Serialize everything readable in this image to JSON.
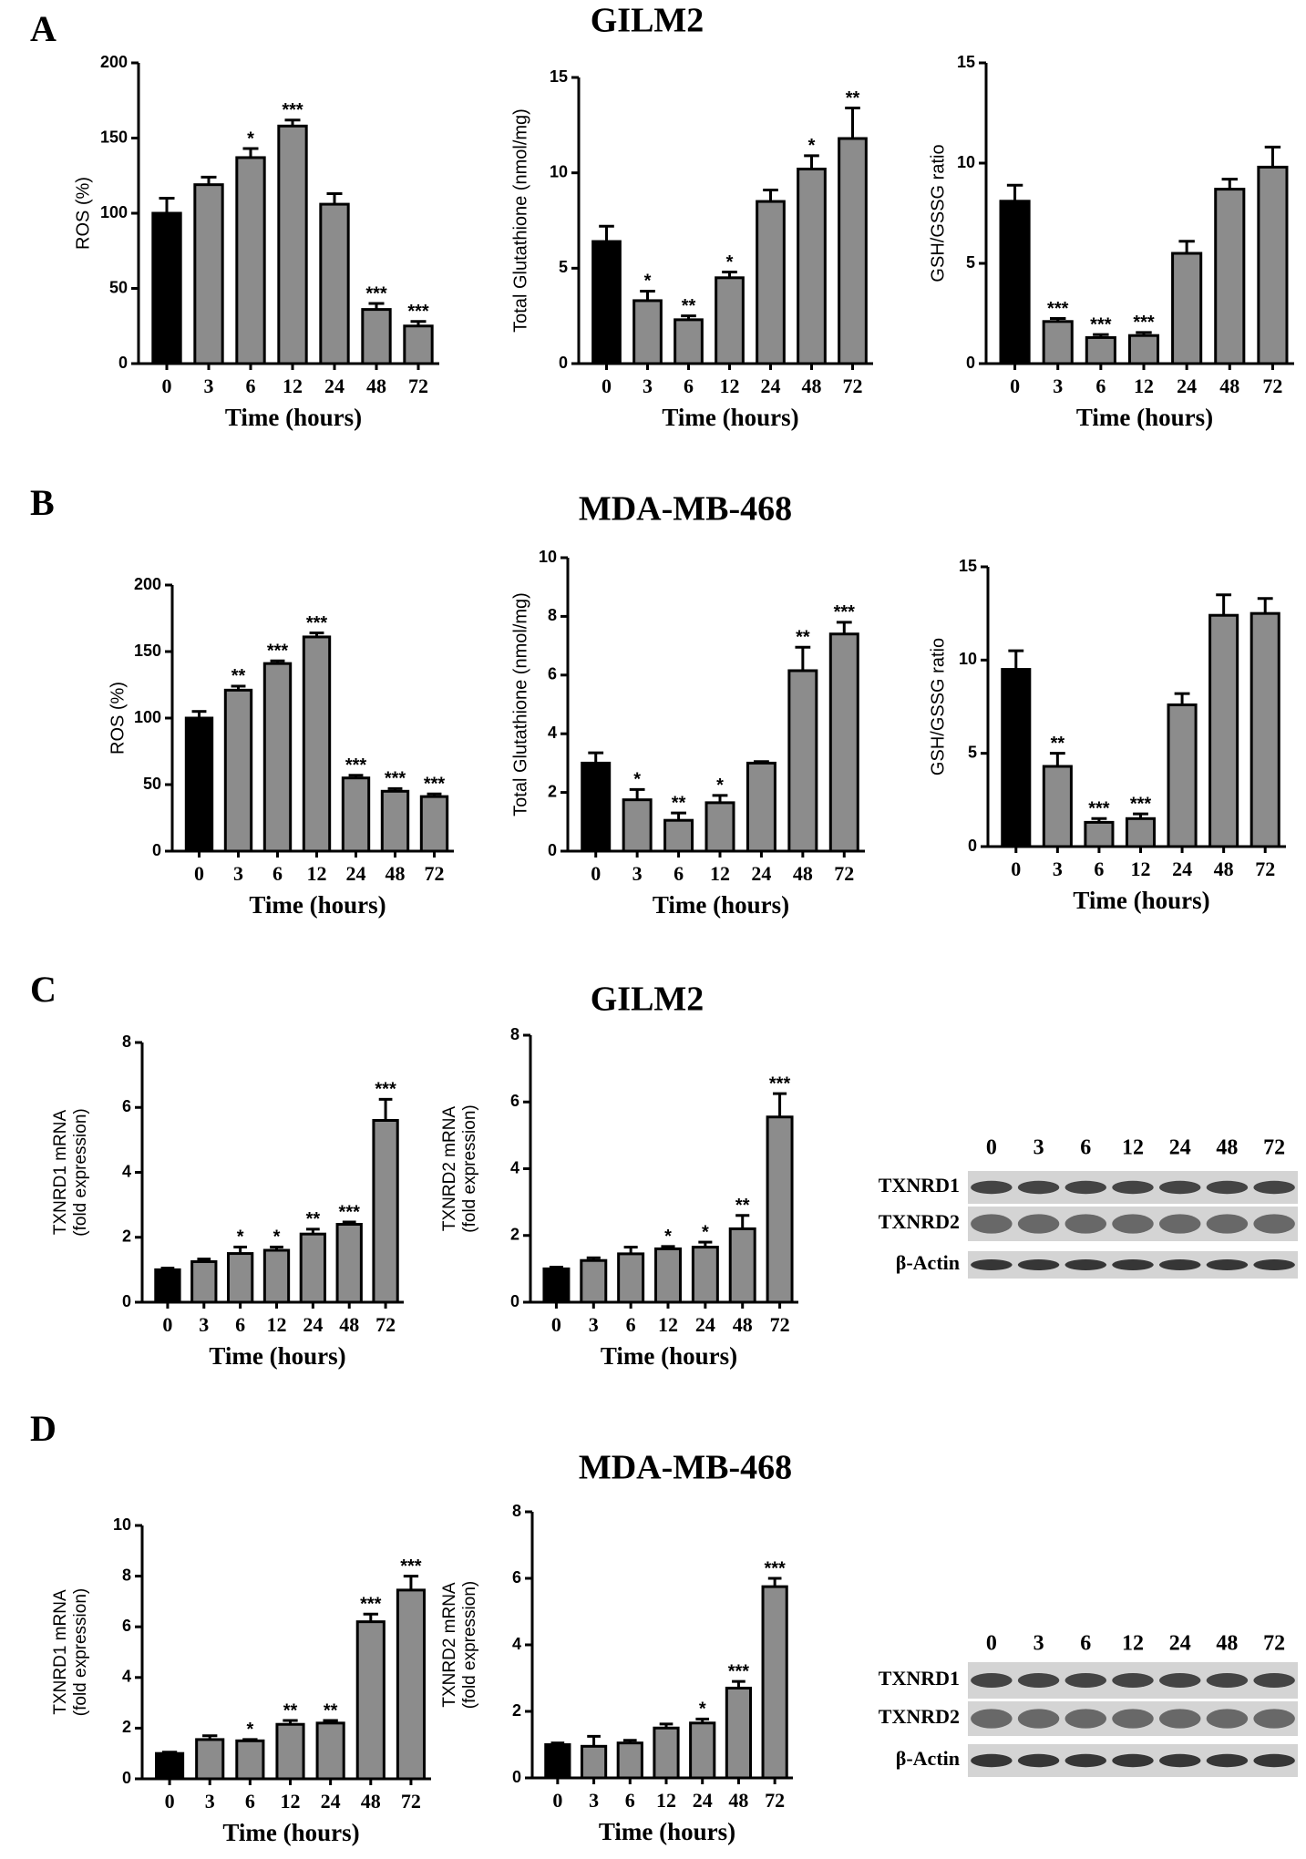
{
  "figure": {
    "panels": [
      {
        "letter": "A",
        "title": "GILM2"
      },
      {
        "letter": "B",
        "title": "MDA-MB-468"
      },
      {
        "letter": "C",
        "title": "GILM2"
      },
      {
        "letter": "D",
        "title": "MDA-MB-468"
      }
    ],
    "blots": [
      {
        "lanes": [
          "0",
          "3",
          "6",
          "12",
          "24",
          "48",
          "72"
        ],
        "rows": [
          "TXNRD1",
          "TXNRD2",
          "β-Actin"
        ]
      },
      {
        "lanes": [
          "0",
          "3",
          "6",
          "12",
          "24",
          "48",
          "72"
        ],
        "rows": [
          "TXNRD1",
          "TXNRD2",
          "β-Actin"
        ]
      }
    ]
  },
  "chart_data": [
    {
      "type": "bar",
      "ylabel": "ROS  (%)",
      "xlabel": "Time (hours)",
      "categories": [
        "0",
        "3",
        "6",
        "12",
        "24",
        "48",
        "72"
      ],
      "values": [
        100,
        119,
        137,
        158,
        106,
        36,
        25
      ],
      "errors": [
        10,
        5,
        6,
        4,
        7,
        4,
        3
      ],
      "annotations": [
        null,
        null,
        "*",
        "***",
        null,
        "***",
        "***"
      ],
      "colors": [
        "#000000",
        "#8c8c8c",
        "#8c8c8c",
        "#8c8c8c",
        "#8c8c8c",
        "#8c8c8c",
        "#8c8c8c"
      ],
      "ylim": [
        0,
        200
      ],
      "yticks": [
        0,
        50,
        100,
        150,
        200
      ]
    },
    {
      "type": "bar",
      "ylabel": "Total Glutathione  (nmol/mg)",
      "xlabel": "Time (hours)",
      "categories": [
        "0",
        "3",
        "6",
        "12",
        "24",
        "48",
        "72"
      ],
      "values": [
        6.4,
        3.3,
        2.3,
        4.5,
        8.5,
        10.2,
        11.8
      ],
      "errors": [
        0.8,
        0.5,
        0.2,
        0.3,
        0.6,
        0.7,
        1.6
      ],
      "annotations": [
        null,
        "*",
        "**",
        "*",
        null,
        "*",
        "**"
      ],
      "colors": [
        "#000000",
        "#8c8c8c",
        "#8c8c8c",
        "#8c8c8c",
        "#8c8c8c",
        "#8c8c8c",
        "#8c8c8c"
      ],
      "ylim": [
        0,
        15
      ],
      "yticks": [
        0,
        5,
        10,
        15
      ]
    },
    {
      "type": "bar",
      "ylabel": "GSH/GSSG ratio",
      "xlabel": "Time (hours)",
      "categories": [
        "0",
        "3",
        "6",
        "12",
        "24",
        "48",
        "72"
      ],
      "values": [
        8.1,
        2.1,
        1.3,
        1.4,
        5.5,
        8.7,
        9.8
      ],
      "errors": [
        0.8,
        0.15,
        0.15,
        0.15,
        0.6,
        0.5,
        1.0
      ],
      "annotations": [
        null,
        "***",
        "***",
        "***",
        null,
        null,
        null
      ],
      "colors": [
        "#000000",
        "#8c8c8c",
        "#8c8c8c",
        "#8c8c8c",
        "#8c8c8c",
        "#8c8c8c",
        "#8c8c8c"
      ],
      "ylim": [
        0,
        15
      ],
      "yticks": [
        0,
        5,
        10,
        15
      ]
    },
    {
      "type": "bar",
      "ylabel": "ROS (%)",
      "xlabel": "Time (hours)",
      "categories": [
        "0",
        "3",
        "6",
        "12",
        "24",
        "48",
        "72"
      ],
      "values": [
        100,
        121,
        141,
        161,
        55,
        45,
        41
      ],
      "errors": [
        5,
        3,
        2,
        3,
        2,
        2,
        2
      ],
      "annotations": [
        null,
        "**",
        "***",
        "***",
        "***",
        "***",
        "***"
      ],
      "colors": [
        "#000000",
        "#8c8c8c",
        "#8c8c8c",
        "#8c8c8c",
        "#8c8c8c",
        "#8c8c8c",
        "#8c8c8c"
      ],
      "ylim": [
        0,
        200
      ],
      "yticks": [
        0,
        50,
        100,
        150,
        200
      ]
    },
    {
      "type": "bar",
      "ylabel": "Total Glutathione  (nmol/mg)",
      "xlabel": "Time (hours)",
      "categories": [
        "0",
        "3",
        "6",
        "12",
        "24",
        "48",
        "72"
      ],
      "values": [
        3.0,
        1.75,
        1.05,
        1.65,
        3.0,
        6.15,
        7.4
      ],
      "errors": [
        0.35,
        0.35,
        0.25,
        0.25,
        0.05,
        0.8,
        0.4
      ],
      "annotations": [
        null,
        "*",
        "**",
        "*",
        null,
        "**",
        "***"
      ],
      "colors": [
        "#000000",
        "#8c8c8c",
        "#8c8c8c",
        "#8c8c8c",
        "#8c8c8c",
        "#8c8c8c",
        "#8c8c8c"
      ],
      "ylim": [
        0,
        10
      ],
      "yticks": [
        0,
        2,
        4,
        6,
        8,
        10
      ]
    },
    {
      "type": "bar",
      "ylabel": "GSH/GSSG ratio",
      "xlabel": "Time (hours)",
      "categories": [
        "0",
        "3",
        "6",
        "12",
        "24",
        "48",
        "72"
      ],
      "values": [
        9.5,
        4.3,
        1.3,
        1.5,
        7.6,
        12.4,
        12.5
      ],
      "errors": [
        1.0,
        0.7,
        0.2,
        0.25,
        0.6,
        1.1,
        0.8
      ],
      "annotations": [
        null,
        "**",
        "***",
        "***",
        null,
        null,
        null
      ],
      "colors": [
        "#000000",
        "#8c8c8c",
        "#8c8c8c",
        "#8c8c8c",
        "#8c8c8c",
        "#8c8c8c",
        "#8c8c8c"
      ],
      "ylim": [
        0,
        15
      ],
      "yticks": [
        0,
        5,
        10,
        15
      ]
    },
    {
      "type": "bar",
      "ylabel": [
        "TXNRD1 mRNA",
        "(fold expression)"
      ],
      "xlabel": "Time (hours)",
      "categories": [
        "0",
        "3",
        "6",
        "12",
        "24",
        "48",
        "72"
      ],
      "values": [
        1.0,
        1.25,
        1.5,
        1.6,
        2.1,
        2.4,
        5.6
      ],
      "errors": [
        0.05,
        0.08,
        0.2,
        0.1,
        0.15,
        0.07,
        0.65
      ],
      "annotations": [
        null,
        null,
        "*",
        "*",
        "**",
        "***",
        "***"
      ],
      "colors": [
        "#000000",
        "#8c8c8c",
        "#8c8c8c",
        "#8c8c8c",
        "#8c8c8c",
        "#8c8c8c",
        "#8c8c8c"
      ],
      "ylim": [
        0,
        8
      ],
      "yticks": [
        0,
        2,
        4,
        6,
        8
      ]
    },
    {
      "type": "bar",
      "ylabel": [
        "TXNRD2 mRNA",
        "(fold expression)"
      ],
      "xlabel": "Time (hours)",
      "categories": [
        "0",
        "3",
        "6",
        "12",
        "24",
        "48",
        "72"
      ],
      "values": [
        1.0,
        1.25,
        1.45,
        1.6,
        1.65,
        2.2,
        5.55
      ],
      "errors": [
        0.05,
        0.08,
        0.2,
        0.07,
        0.15,
        0.4,
        0.7
      ],
      "annotations": [
        null,
        null,
        null,
        "*",
        "*",
        "**",
        "***"
      ],
      "colors": [
        "#000000",
        "#8c8c8c",
        "#8c8c8c",
        "#8c8c8c",
        "#8c8c8c",
        "#8c8c8c",
        "#8c8c8c"
      ],
      "ylim": [
        0,
        8
      ],
      "yticks": [
        0,
        2,
        4,
        6,
        8
      ]
    },
    {
      "type": "bar",
      "ylabel": [
        "TXNRD1 mRNA",
        "(fold expression)"
      ],
      "xlabel": "Time (hours)",
      "categories": [
        "0",
        "3",
        "6",
        "12",
        "24",
        "48",
        "72"
      ],
      "values": [
        1.0,
        1.55,
        1.5,
        2.15,
        2.2,
        6.2,
        7.45
      ],
      "errors": [
        0.05,
        0.15,
        0.05,
        0.15,
        0.1,
        0.3,
        0.55
      ],
      "annotations": [
        null,
        null,
        "*",
        "**",
        "**",
        "***",
        "***"
      ],
      "colors": [
        "#000000",
        "#8c8c8c",
        "#8c8c8c",
        "#8c8c8c",
        "#8c8c8c",
        "#8c8c8c",
        "#8c8c8c"
      ],
      "ylim": [
        0,
        10
      ],
      "yticks": [
        0,
        2,
        4,
        6,
        8,
        10
      ]
    },
    {
      "type": "bar",
      "ylabel": [
        "TXNRD2 mRNA",
        "(fold expression)"
      ],
      "xlabel": "Time (hours)",
      "categories": [
        "0",
        "3",
        "6",
        "12",
        "24",
        "48",
        "72"
      ],
      "values": [
        1.0,
        0.95,
        1.05,
        1.5,
        1.65,
        2.7,
        5.75
      ],
      "errors": [
        0.05,
        0.3,
        0.08,
        0.12,
        0.12,
        0.2,
        0.25
      ],
      "annotations": [
        null,
        null,
        null,
        null,
        "*",
        "***",
        "***"
      ],
      "colors": [
        "#000000",
        "#8c8c8c",
        "#8c8c8c",
        "#8c8c8c",
        "#8c8c8c",
        "#8c8c8c",
        "#8c8c8c"
      ],
      "ylim": [
        0,
        8
      ],
      "yticks": [
        0,
        2,
        4,
        6,
        8
      ]
    }
  ]
}
